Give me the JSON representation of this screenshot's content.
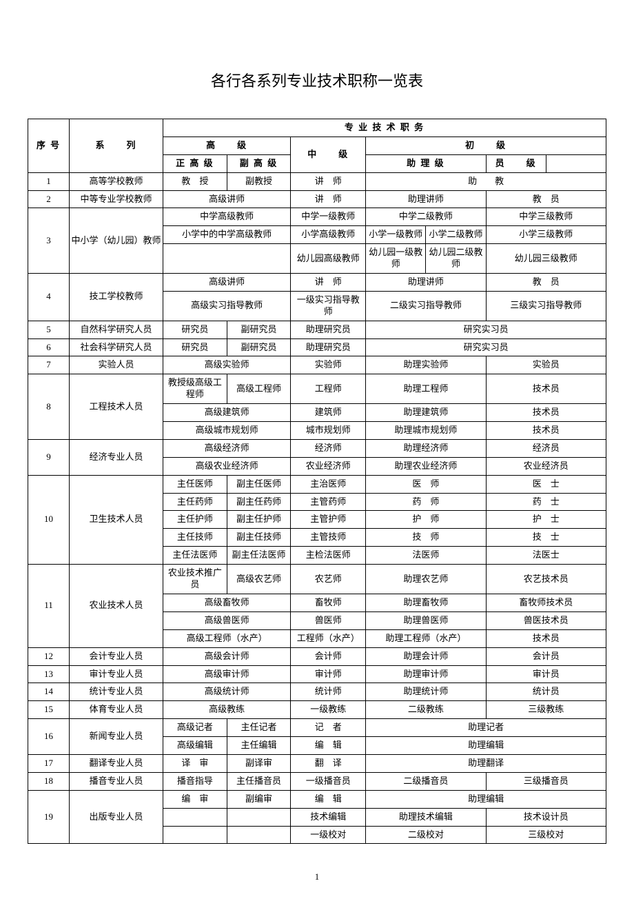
{
  "title": "各行各系列专业技术职称一览表",
  "page_number": "1",
  "header": {
    "seq": "序 号",
    "series": "系　　列",
    "pro_title": "专 业 技 术 职 务",
    "senior": "高　　级",
    "senior_full": "正 高 级",
    "senior_deputy": "副 高 级",
    "middle": "中　　级",
    "junior": "初　　级",
    "junior_assist": "助 理 级",
    "junior_member": "员　　级"
  },
  "rows": {
    "r1": {
      "idx": "1",
      "series": "高等学校教师",
      "sf": "教　授",
      "sd": "副教授",
      "mid": "讲　师",
      "jun": "助　　教"
    },
    "r2": {
      "idx": "2",
      "series": "中等专业学校教师",
      "sen": "高级讲师",
      "mid": "讲　师",
      "ja": "助理讲师",
      "jm": "教　员"
    },
    "r3": {
      "idx": "3",
      "series": "中小学（幼儿园）教师",
      "a": {
        "sen": "中学高级教师",
        "mid": "中学一级教师",
        "ja": "中学二级教师",
        "jm": "中学三级教师"
      },
      "b": {
        "sen": "小学中的中学高级教师",
        "mid": "小学高级教师",
        "j1": "小学一级教师",
        "j2": "小学二级教师",
        "j3": "小学三级教师"
      },
      "c": {
        "sen": "",
        "mid": "幼儿园高级教师",
        "j1": "幼儿园一级教师",
        "j2": "幼儿园二级教师",
        "j3": "幼儿园三级教师"
      }
    },
    "r4": {
      "idx": "4",
      "series": "技工学校教师",
      "a": {
        "sen": "高级讲师",
        "mid": "讲　师",
        "ja": "助理讲师",
        "jm": "教　员"
      },
      "b": {
        "sen": "高级实习指导教师",
        "mid": "一级实习指导教师",
        "ja": "二级实习指导教师",
        "jm": "三级实习指导教师"
      }
    },
    "r5": {
      "idx": "5",
      "series": "自然科学研究人员",
      "sf": "研究员",
      "sd": "副研究员",
      "mid": "助理研究员",
      "jun": "研究实习员"
    },
    "r6": {
      "idx": "6",
      "series": "社会科学研究人员",
      "sf": "研究员",
      "sd": "副研究员",
      "mid": "助理研究员",
      "jun": "研究实习员"
    },
    "r7": {
      "idx": "7",
      "series": "实验人员",
      "sen": "高级实验师",
      "mid": "实验师",
      "ja": "助理实验师",
      "jm": "实验员"
    },
    "r8": {
      "idx": "8",
      "series": "工程技术人员",
      "a": {
        "sf": "教授级高级工程师",
        "sd": "高级工程师",
        "mid": "工程师",
        "ja": "助理工程师",
        "jm": "技术员"
      },
      "b": {
        "sen": "高级建筑师",
        "mid": "建筑师",
        "ja": "助理建筑师",
        "jm": "技术员"
      },
      "c": {
        "sen": "高级城市规划师",
        "mid": "城市规划师",
        "ja": "助理城市规划师",
        "jm": "技术员"
      }
    },
    "r9": {
      "idx": "9",
      "series": "经济专业人员",
      "a": {
        "sen": "高级经济师",
        "mid": "经济师",
        "ja": "助理经济师",
        "jm": "经济员"
      },
      "b": {
        "sen": "高级农业经济师",
        "mid": "农业经济师",
        "ja": "助理农业经济师",
        "jm": "农业经济员"
      }
    },
    "r10": {
      "idx": "10",
      "series": "卫生技术人员",
      "a": {
        "sf": "主任医师",
        "sd": "副主任医师",
        "mid": "主治医师",
        "ja": "医　师",
        "jm": "医　士"
      },
      "b": {
        "sf": "主任药师",
        "sd": "副主任药师",
        "mid": "主管药师",
        "ja": "药　师",
        "jm": "药　士"
      },
      "c": {
        "sf": "主任护师",
        "sd": "副主任护师",
        "mid": "主管护师",
        "ja": "护　师",
        "jm": "护　士"
      },
      "d": {
        "sf": "主任技师",
        "sd": "副主任技师",
        "mid": "主管技师",
        "ja": "技　师",
        "jm": "技　士"
      },
      "e": {
        "sf": "主任法医师",
        "sd": "副主任法医师",
        "mid": "主检法医师",
        "ja": "法医师",
        "jm": "法医士"
      }
    },
    "r11": {
      "idx": "11",
      "series": "农业技术人员",
      "a": {
        "sf": "农业技术推广员",
        "sd": "高级农艺师",
        "mid": "农艺师",
        "ja": "助理农艺师",
        "jm": "农艺技术员"
      },
      "b": {
        "sen": "高级畜牧师",
        "mid": "畜牧师",
        "ja": "助理畜牧师",
        "jm": "畜牧师技术员"
      },
      "c": {
        "sen": "高级兽医师",
        "mid": "兽医师",
        "ja": "助理兽医师",
        "jm": "兽医技术员"
      },
      "d": {
        "sen": "高级工程师（水产）",
        "mid": "工程师（水产）",
        "ja": "助理工程师（水产）",
        "jm": "技术员"
      }
    },
    "r12": {
      "idx": "12",
      "series": "会计专业人员",
      "sen": "高级会计师",
      "mid": "会计师",
      "ja": "助理会计师",
      "jm": "会计员"
    },
    "r13": {
      "idx": "13",
      "series": "审计专业人员",
      "sen": "高级审计师",
      "mid": "审计师",
      "ja": "助理审计师",
      "jm": "审计员"
    },
    "r14": {
      "idx": "14",
      "series": "统计专业人员",
      "sen": "高级统计师",
      "mid": "统计师",
      "ja": "助理统计师",
      "jm": "统计员"
    },
    "r15": {
      "idx": "15",
      "series": "体育专业人员",
      "sen": "高级教练",
      "mid": "一级教练",
      "ja": "二级教练",
      "jm": "三级教练"
    },
    "r16": {
      "idx": "16",
      "series": "新闻专业人员",
      "a": {
        "sf": "高级记者",
        "sd": "主任记者",
        "mid": "记　者",
        "jun": "助理记者"
      },
      "b": {
        "sf": "高级编辑",
        "sd": "主任编辑",
        "mid": "编　辑",
        "jun": "助理编辑"
      }
    },
    "r17": {
      "idx": "17",
      "series": "翻译专业人员",
      "sf": "译　审",
      "sd": "副译审",
      "mid": "翻　译",
      "jun": "助理翻译"
    },
    "r18": {
      "idx": "18",
      "series": "播音专业人员",
      "sf": "播音指导",
      "sd": "主任播音员",
      "mid": "一级播音员",
      "ja": "二级播音员",
      "jm": "三级播音员"
    },
    "r19": {
      "idx": "19",
      "series": "出版专业人员",
      "a": {
        "sf": "编　审",
        "sd": "副编审",
        "mid": "编　辑",
        "jun": "助理编辑"
      },
      "b": {
        "sf": "",
        "sd": "",
        "mid": "技术编辑",
        "ja": "助理技术编辑",
        "jm": "技术设计员"
      },
      "c": {
        "sf": "",
        "sd": "",
        "mid": "一级校对",
        "ja": "二级校对",
        "jm": "三级校对"
      }
    }
  }
}
